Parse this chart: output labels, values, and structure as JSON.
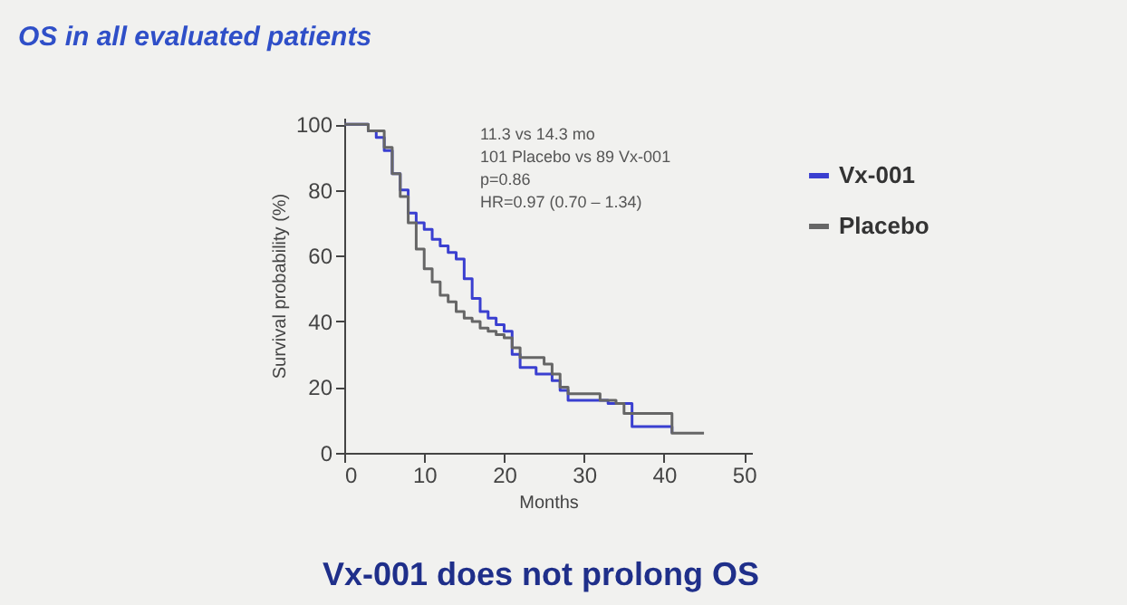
{
  "chart_data": {
    "type": "step",
    "title": "OS in all evaluated patients",
    "xlabel": "Months",
    "ylabel": "Survival probability (%)",
    "xlim": [
      0,
      51
    ],
    "ylim": [
      0,
      102
    ],
    "xticks": [
      0,
      10,
      20,
      30,
      40,
      50
    ],
    "yticks": [
      0,
      20,
      40,
      60,
      80,
      100
    ],
    "grid": false,
    "legend": "right",
    "marker": "none",
    "line_style": "solid",
    "series": [
      {
        "name": "Vx-001",
        "color": "#3a3fd0",
        "x": [
          0,
          2,
          3,
          4,
          5,
          6,
          7,
          8,
          9,
          10,
          11,
          12,
          13,
          14,
          15,
          16,
          17,
          18,
          19,
          20,
          21,
          22,
          24,
          26,
          27,
          28,
          33,
          36,
          40,
          41
        ],
        "values": [
          100,
          100,
          98,
          96,
          92,
          85,
          80,
          73,
          70,
          68,
          65,
          63,
          61,
          59,
          53,
          47,
          43,
          41,
          39,
          37,
          30,
          26,
          24,
          22,
          19,
          16,
          15,
          8,
          8,
          6
        ]
      },
      {
        "name": "Placebo",
        "color": "#666666",
        "x": [
          0,
          3,
          5,
          6,
          7,
          8,
          9,
          10,
          11,
          12,
          13,
          14,
          15,
          16,
          17,
          18,
          19,
          20,
          21,
          22,
          25,
          26,
          27,
          28,
          32,
          34,
          35,
          40,
          41,
          45
        ],
        "values": [
          100,
          98,
          93,
          85,
          78,
          70,
          62,
          56,
          52,
          48,
          46,
          43,
          41,
          40,
          38,
          37,
          36,
          35,
          32,
          29,
          27,
          24,
          20,
          18,
          16,
          15,
          12,
          12,
          6,
          6
        ]
      }
    ],
    "annotations": [
      "11.3 vs 14.3 mo",
      "101 Placebo vs 89 Vx-001",
      "p=0.86",
      "HR=0.97 (0.70 – 1.34)",
      "Vx-001 does not prolong OS"
    ]
  }
}
